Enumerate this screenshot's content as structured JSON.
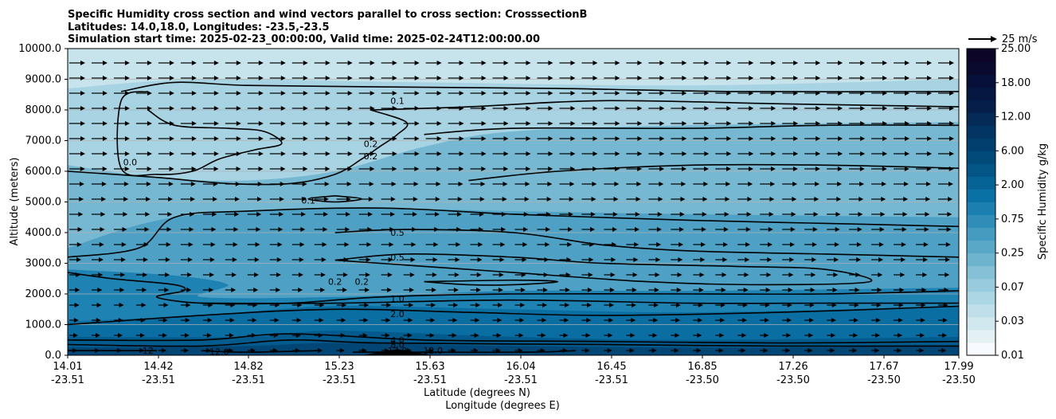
{
  "chart_data": {
    "type": "contour",
    "title_lines": [
      "Specific Humidity cross section and wind vectors parallel to cross section: CrosssectionB",
      "Latitudes: 14.0,18.0, Longitudes: -23.5,-23.5",
      "Simulation start time: 2025-02-23_00:00:00, Valid time: 2025-02-24T12:00:00.00"
    ],
    "ylabel": "Altitude (meters)",
    "xlabel_lat": "Latitude (degrees N)",
    "xlabel_lon": "Longitude (degrees E)",
    "ylim": [
      0,
      10000
    ],
    "y_ticks": [
      "0.0",
      "1000.0",
      "2000.0",
      "3000.0",
      "4000.0",
      "5000.0",
      "6000.0",
      "7000.0",
      "8000.0",
      "9000.0",
      "10000.0"
    ],
    "x_ticks": [
      {
        "lat": "14.01",
        "lon": "-23.51"
      },
      {
        "lat": "14.42",
        "lon": "-23.51"
      },
      {
        "lat": "14.82",
        "lon": "-23.51"
      },
      {
        "lat": "15.23",
        "lon": "-23.51"
      },
      {
        "lat": "15.63",
        "lon": "-23.51"
      },
      {
        "lat": "16.04",
        "lon": "-23.51"
      },
      {
        "lat": "16.45",
        "lon": "-23.51"
      },
      {
        "lat": "16.85",
        "lon": "-23.50"
      },
      {
        "lat": "17.26",
        "lon": "-23.50"
      },
      {
        "lat": "17.67",
        "lon": "-23.50"
      },
      {
        "lat": "17.99",
        "lon": "-23.50"
      }
    ],
    "grid": "horizontal",
    "colorbar": {
      "label": "Specific Humidity g/kg",
      "ticks": [
        "0.01",
        "0.03",
        "0.07",
        "0.25",
        "0.75",
        "2.00",
        "6.00",
        "12.00",
        "18.00",
        "25.00"
      ],
      "colors": [
        "#f7fbff",
        "#e3f1f5",
        "#d1e8ef",
        "#bfe0ea",
        "#acd6e4",
        "#98cbdd",
        "#84c0d6",
        "#6fb4cf",
        "#5aa8c8",
        "#459bc0",
        "#2f8db8",
        "#1b80b0",
        "#0a71a4",
        "#066396",
        "#035686",
        "#024a79",
        "#023f6e",
        "#033563",
        "#042a57",
        "#051f4a",
        "#061741",
        "#071038",
        "#0a0a2f",
        "#0c0528"
      ]
    },
    "quiver_key": {
      "label": "25 m/s"
    },
    "contour_labels": [
      {
        "text": "0.1",
        "x": 0.37,
        "y": 8300
      },
      {
        "text": "0.2",
        "x": 0.34,
        "y": 6900
      },
      {
        "text": "0.2",
        "x": 0.34,
        "y": 6500
      },
      {
        "text": "0.1",
        "x": 0.27,
        "y": 5050
      },
      {
        "text": "0.0",
        "x": 0.07,
        "y": 6300
      },
      {
        "text": "0.5",
        "x": 0.37,
        "y": 4000
      },
      {
        "text": "0.5",
        "x": 0.37,
        "y": 3200
      },
      {
        "text": "0.2",
        "x": 0.33,
        "y": 2400
      },
      {
        "text": "0.2",
        "x": 0.3,
        "y": 2400
      },
      {
        "text": "1.0",
        "x": 0.37,
        "y": 1850
      },
      {
        "text": "2.0",
        "x": 0.37,
        "y": 1350
      },
      {
        "text": "4.0",
        "x": 0.37,
        "y": 500
      },
      {
        "text": "8.0",
        "x": 0.37,
        "y": 350
      },
      {
        "text": "12.0",
        "x": 0.37,
        "y": 150
      },
      {
        "text": "12",
        "x": 0.09,
        "y": 150
      },
      {
        "text": "12.0",
        "x": 0.17,
        "y": 120
      },
      {
        "text": "12.0",
        "x": 0.41,
        "y": 150
      }
    ],
    "contours": [
      {
        "level": "0.1",
        "points": [
          [
            0.06,
            8600
          ],
          [
            0.12,
            8900
          ],
          [
            0.2,
            8800
          ],
          [
            0.35,
            8750
          ],
          [
            0.55,
            8700
          ],
          [
            0.75,
            8600
          ],
          [
            1.0,
            8600
          ]
        ]
      },
      {
        "level": "0.1",
        "points": [
          [
            0.09,
            8000
          ],
          [
            0.12,
            7500
          ],
          [
            0.18,
            7400
          ],
          [
            0.22,
            7300
          ],
          [
            0.24,
            6900
          ],
          [
            0.21,
            6700
          ],
          [
            0.17,
            6400
          ],
          [
            0.14,
            6000
          ],
          [
            0.1,
            5900
          ],
          [
            0.06,
            6100
          ],
          [
            0.06,
            8300
          ],
          [
            0.09,
            8600
          ]
        ]
      },
      {
        "level": "0.1",
        "points": [
          [
            0.34,
            8000
          ],
          [
            0.45,
            8100
          ],
          [
            0.6,
            8300
          ],
          [
            0.8,
            8200
          ],
          [
            1.0,
            8100
          ]
        ]
      },
      {
        "level": "0.2",
        "points": [
          [
            0.34,
            8000
          ],
          [
            0.38,
            7600
          ],
          [
            0.37,
            7200
          ],
          [
            0.35,
            6800
          ],
          [
            0.33,
            6400
          ],
          [
            0.3,
            5900
          ],
          [
            0.25,
            5600
          ],
          [
            0.18,
            5600
          ],
          [
            0.1,
            5800
          ],
          [
            0.0,
            6000
          ]
        ]
      },
      {
        "level": "0.2",
        "points": [
          [
            0.4,
            7200
          ],
          [
            0.5,
            7400
          ],
          [
            0.7,
            7400
          ],
          [
            0.85,
            7500
          ],
          [
            1.0,
            7500
          ]
        ]
      },
      {
        "level": "0.1",
        "points": [
          [
            0.3,
            5200
          ],
          [
            0.33,
            5100
          ],
          [
            0.3,
            5000
          ],
          [
            0.27,
            5100
          ],
          [
            0.3,
            5200
          ]
        ]
      },
      {
        "level": "0.2",
        "points": [
          [
            0.45,
            5700
          ],
          [
            0.55,
            6000
          ],
          [
            0.7,
            6200
          ],
          [
            0.85,
            6200
          ],
          [
            1.0,
            6100
          ]
        ]
      },
      {
        "level": "0.5",
        "points": [
          [
            0.0,
            3200
          ],
          [
            0.08,
            3500
          ],
          [
            0.12,
            4500
          ],
          [
            0.2,
            4700
          ],
          [
            0.35,
            4800
          ],
          [
            0.5,
            4600
          ],
          [
            0.7,
            4400
          ],
          [
            0.85,
            4300
          ],
          [
            1.0,
            4200
          ]
        ]
      },
      {
        "level": "0.5",
        "points": [
          [
            0.3,
            4000
          ],
          [
            0.38,
            4100
          ],
          [
            0.5,
            4000
          ],
          [
            0.6,
            3600
          ],
          [
            0.7,
            3400
          ],
          [
            0.85,
            3300
          ],
          [
            1.0,
            3200
          ]
        ]
      },
      {
        "level": "0.5",
        "points": [
          [
            0.3,
            3100
          ],
          [
            0.38,
            3300
          ],
          [
            0.5,
            3200
          ],
          [
            0.6,
            3000
          ],
          [
            0.75,
            2900
          ],
          [
            0.85,
            2800
          ],
          [
            0.9,
            2400
          ],
          [
            0.78,
            2300
          ],
          [
            0.65,
            2400
          ],
          [
            0.5,
            2700
          ],
          [
            0.4,
            2900
          ],
          [
            0.3,
            3100
          ]
        ]
      },
      {
        "level": "0.2",
        "points": [
          [
            0.0,
            2700
          ],
          [
            0.05,
            2500
          ],
          [
            0.12,
            2300
          ],
          [
            0.13,
            2100
          ],
          [
            0.1,
            1900
          ],
          [
            0.15,
            1700
          ],
          [
            0.25,
            1700
          ],
          [
            0.35,
            1900
          ],
          [
            0.5,
            2000
          ],
          [
            0.7,
            2000
          ],
          [
            0.85,
            2000
          ],
          [
            1.0,
            2100
          ]
        ]
      },
      {
        "level": "0.2",
        "points": [
          [
            0.4,
            2400
          ],
          [
            0.45,
            2300
          ],
          [
            0.5,
            2300
          ],
          [
            0.55,
            2400
          ],
          [
            0.5,
            2450
          ],
          [
            0.4,
            2400
          ]
        ]
      },
      {
        "level": "1.0",
        "points": [
          [
            0.15,
            1700
          ],
          [
            0.3,
            1700
          ],
          [
            0.5,
            1800
          ],
          [
            0.7,
            1700
          ],
          [
            0.85,
            1700
          ],
          [
            1.0,
            1700
          ]
        ]
      },
      {
        "level": "2.0",
        "points": [
          [
            0.0,
            1000
          ],
          [
            0.15,
            1300
          ],
          [
            0.3,
            1500
          ],
          [
            0.45,
            1400
          ],
          [
            0.6,
            1300
          ],
          [
            0.8,
            1400
          ],
          [
            1.0,
            1600
          ]
        ]
      },
      {
        "level": "4.0",
        "points": [
          [
            0.0,
            500
          ],
          [
            0.15,
            500
          ],
          [
            0.25,
            700
          ],
          [
            0.4,
            500
          ],
          [
            0.6,
            450
          ],
          [
            0.8,
            400
          ],
          [
            1.0,
            450
          ]
        ]
      },
      {
        "level": "8.0",
        "points": [
          [
            0.0,
            350
          ],
          [
            0.15,
            300
          ],
          [
            0.25,
            500
          ],
          [
            0.35,
            400
          ],
          [
            0.6,
            350
          ],
          [
            0.8,
            300
          ],
          [
            1.0,
            300
          ]
        ]
      },
      {
        "level": "12.0",
        "points": [
          [
            0.0,
            150
          ],
          [
            0.08,
            150
          ],
          [
            0.1,
            150
          ]
        ]
      },
      {
        "level": "12.0",
        "points": [
          [
            0.15,
            150
          ],
          [
            0.2,
            100
          ],
          [
            0.28,
            150
          ]
        ]
      },
      {
        "level": "12.0",
        "points": [
          [
            0.32,
            100
          ],
          [
            0.37,
            100
          ],
          [
            0.4,
            100
          ],
          [
            0.52,
            100
          ],
          [
            0.57,
            150
          ]
        ]
      }
    ],
    "bands": [
      {
        "level": "2.00",
        "color": "#1e82b3",
        "top": [
          [
            0.0,
            2800
          ],
          [
            0.12,
            2600
          ],
          [
            0.18,
            2300
          ],
          [
            0.15,
            1900
          ],
          [
            0.3,
            1900
          ],
          [
            0.5,
            2100
          ],
          [
            0.7,
            2100
          ],
          [
            1.0,
            2200
          ]
        ]
      },
      {
        "level": "6.00",
        "color": "#0a6ea3",
        "top": [
          [
            0.0,
            1100
          ],
          [
            0.15,
            1300
          ],
          [
            0.3,
            1600
          ],
          [
            0.5,
            1500
          ],
          [
            0.7,
            1400
          ],
          [
            1.0,
            1600
          ]
        ]
      },
      {
        "level": "12.00",
        "color": "#035a8c",
        "top": [
          [
            0.0,
            600
          ],
          [
            0.2,
            600
          ],
          [
            0.3,
            800
          ],
          [
            0.5,
            600
          ],
          [
            0.7,
            500
          ],
          [
            1.0,
            600
          ]
        ]
      },
      {
        "level": "18.00",
        "color": "#024676",
        "top": [
          [
            0.0,
            250
          ],
          [
            0.2,
            300
          ],
          [
            0.3,
            400
          ],
          [
            0.5,
            300
          ],
          [
            0.75,
            250
          ],
          [
            1.0,
            300
          ]
        ]
      }
    ],
    "upper_bands": [
      {
        "level": "0.75",
        "color": "#4ea1c4",
        "top": [
          [
            0.0,
            3500
          ],
          [
            0.12,
            4500
          ],
          [
            0.3,
            4800
          ],
          [
            0.5,
            4700
          ],
          [
            0.7,
            4600
          ],
          [
            1.0,
            4500
          ]
        ]
      },
      {
        "level": "0.25",
        "color": "#76b8d2",
        "top": [
          [
            0.0,
            6200
          ],
          [
            0.1,
            5800
          ],
          [
            0.2,
            5700
          ],
          [
            0.3,
            6000
          ],
          [
            0.4,
            6800
          ],
          [
            0.5,
            7300
          ],
          [
            0.7,
            7500
          ],
          [
            1.0,
            7600
          ]
        ]
      },
      {
        "level": "0.07",
        "color": "#a7d3e3",
        "top": [
          [
            0.0,
            8700
          ],
          [
            0.15,
            9000
          ],
          [
            0.4,
            8900
          ],
          [
            0.7,
            8800
          ],
          [
            1.0,
            9000
          ]
        ]
      }
    ],
    "terrain": [
      [
        0.33,
        0
      ],
      [
        0.35,
        100
      ],
      [
        0.37,
        200
      ],
      [
        0.39,
        100
      ],
      [
        0.41,
        0
      ]
    ]
  }
}
